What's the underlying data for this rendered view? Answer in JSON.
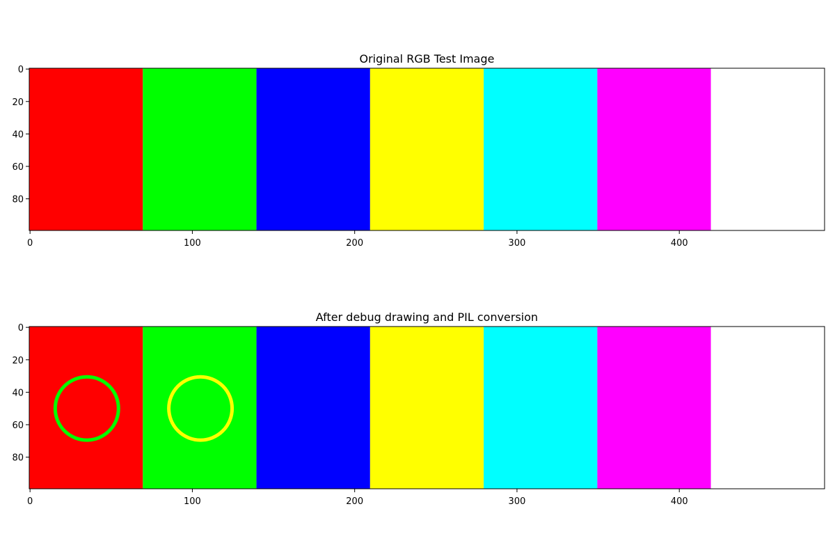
{
  "chart_data": [
    {
      "type": "heatmap",
      "title": "Original RGB Test Image",
      "xlabel": "",
      "ylabel": "",
      "xlim": [
        -0.5,
        489.5
      ],
      "ylim": [
        99.5,
        -0.5
      ],
      "xticks": [
        0,
        100,
        200,
        300,
        400
      ],
      "yticks": [
        0,
        20,
        40,
        60,
        80
      ],
      "xtick_labels": [
        "0",
        "100",
        "200",
        "300",
        "400"
      ],
      "ytick_labels": [
        "0",
        "20",
        "40",
        "60",
        "80"
      ],
      "stripes": [
        {
          "x0": 0,
          "x1": 70,
          "color": "#ff0000"
        },
        {
          "x0": 70,
          "x1": 140,
          "color": "#00ff00"
        },
        {
          "x0": 140,
          "x1": 210,
          "color": "#0000ff"
        },
        {
          "x0": 210,
          "x1": 280,
          "color": "#ffff00"
        },
        {
          "x0": 280,
          "x1": 350,
          "color": "#00ffff"
        },
        {
          "x0": 350,
          "x1": 420,
          "color": "#ff00ff"
        },
        {
          "x0": 420,
          "x1": 490,
          "color": "#ffffff"
        }
      ],
      "circles": []
    },
    {
      "type": "heatmap",
      "title": "After debug drawing and PIL conversion",
      "xlabel": "",
      "ylabel": "",
      "xlim": [
        -0.5,
        489.5
      ],
      "ylim": [
        99.5,
        -0.5
      ],
      "xticks": [
        0,
        100,
        200,
        300,
        400
      ],
      "yticks": [
        0,
        20,
        40,
        60,
        80
      ],
      "xtick_labels": [
        "0",
        "100",
        "200",
        "300",
        "400"
      ],
      "ytick_labels": [
        "0",
        "20",
        "40",
        "60",
        "80"
      ],
      "stripes": [
        {
          "x0": 0,
          "x1": 70,
          "color": "#ff0000"
        },
        {
          "x0": 70,
          "x1": 140,
          "color": "#00ff00"
        },
        {
          "x0": 140,
          "x1": 210,
          "color": "#0000ff"
        },
        {
          "x0": 210,
          "x1": 280,
          "color": "#ffff00"
        },
        {
          "x0": 280,
          "x1": 350,
          "color": "#00ffff"
        },
        {
          "x0": 350,
          "x1": 420,
          "color": "#ff00ff"
        },
        {
          "x0": 420,
          "x1": 490,
          "color": "#ffffff"
        }
      ],
      "circles": [
        {
          "cx": 35,
          "cy": 50,
          "r": 19.5,
          "color": "#00ff00"
        },
        {
          "cx": 105,
          "cy": 50,
          "r": 19.5,
          "color": "#ffff00"
        }
      ]
    }
  ]
}
